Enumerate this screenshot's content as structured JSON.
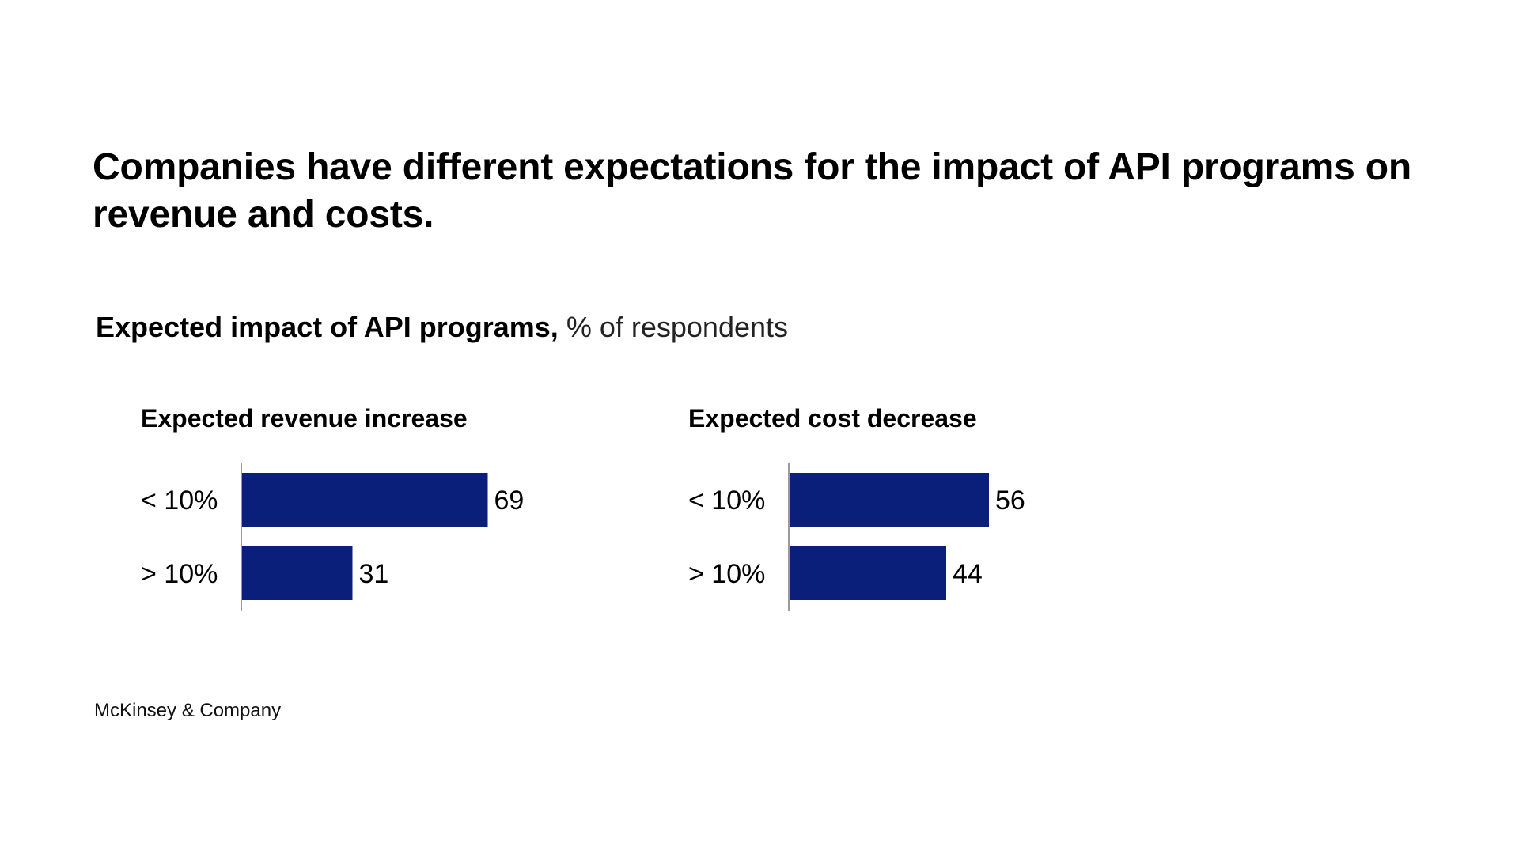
{
  "title": "Companies have different expectations for the impact of API programs on revenue and costs.",
  "subtitle": {
    "bold": "Expected impact of API programs,",
    "regular": "% of respondents"
  },
  "footer": "McKinsey & Company",
  "colors": {
    "bar": "#0a1f7a",
    "axis": "#9a9a9a",
    "text": "#000000"
  },
  "chart_data": [
    {
      "type": "bar",
      "orientation": "horizontal",
      "title": "Expected revenue increase",
      "categories": [
        "< 10%",
        "> 10%"
      ],
      "values": [
        69,
        31
      ],
      "xlim": [
        0,
        100
      ],
      "xlabel": "",
      "ylabel": ""
    },
    {
      "type": "bar",
      "orientation": "horizontal",
      "title": "Expected cost decrease",
      "categories": [
        "< 10%",
        "> 10%"
      ],
      "values": [
        56,
        44
      ],
      "xlim": [
        0,
        100
      ],
      "xlabel": "",
      "ylabel": ""
    }
  ]
}
